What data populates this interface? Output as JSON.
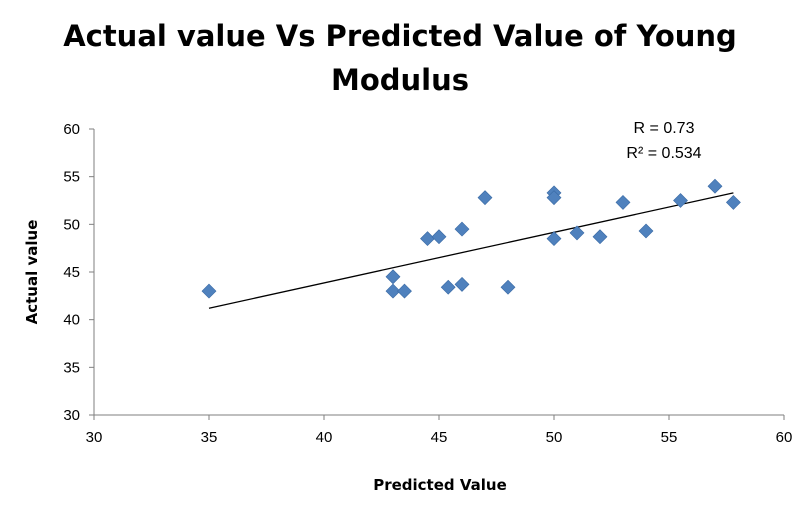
{
  "chart_data": {
    "type": "scatter",
    "title_line1": "Actual value Vs Predicted Value of Young",
    "title_line2": "Modulus",
    "xlabel": "Predicted Value",
    "ylabel": "Actual value",
    "xlim": [
      30,
      60
    ],
    "ylim": [
      30,
      60
    ],
    "x_ticks": [
      30,
      35,
      40,
      45,
      50,
      55,
      60
    ],
    "y_ticks": [
      30,
      35,
      40,
      45,
      50,
      55,
      60
    ],
    "grid": false,
    "marker_color": "#4F81BD",
    "points": [
      {
        "x": 35,
        "y": 43
      },
      {
        "x": 43,
        "y": 44.5
      },
      {
        "x": 43,
        "y": 43
      },
      {
        "x": 43.5,
        "y": 43
      },
      {
        "x": 44.5,
        "y": 48.5
      },
      {
        "x": 45,
        "y": 48.7
      },
      {
        "x": 45.4,
        "y": 43.4
      },
      {
        "x": 46,
        "y": 49.5
      },
      {
        "x": 46,
        "y": 43.7
      },
      {
        "x": 47,
        "y": 52.8
      },
      {
        "x": 48,
        "y": 43.4
      },
      {
        "x": 50,
        "y": 53.3
      },
      {
        "x": 50,
        "y": 52.8
      },
      {
        "x": 50,
        "y": 48.5
      },
      {
        "x": 51,
        "y": 49.1
      },
      {
        "x": 52,
        "y": 48.7
      },
      {
        "x": 53,
        "y": 52.3
      },
      {
        "x": 54,
        "y": 49.3
      },
      {
        "x": 55.5,
        "y": 52.5
      },
      {
        "x": 57,
        "y": 54
      },
      {
        "x": 57.8,
        "y": 52.3
      }
    ],
    "trendline": {
      "x": [
        35,
        57.8
      ],
      "y": [
        41.2,
        53.3
      ],
      "color": "#000000"
    },
    "annotations": [
      "R = 0.73",
      "R² = 0.534"
    ]
  }
}
